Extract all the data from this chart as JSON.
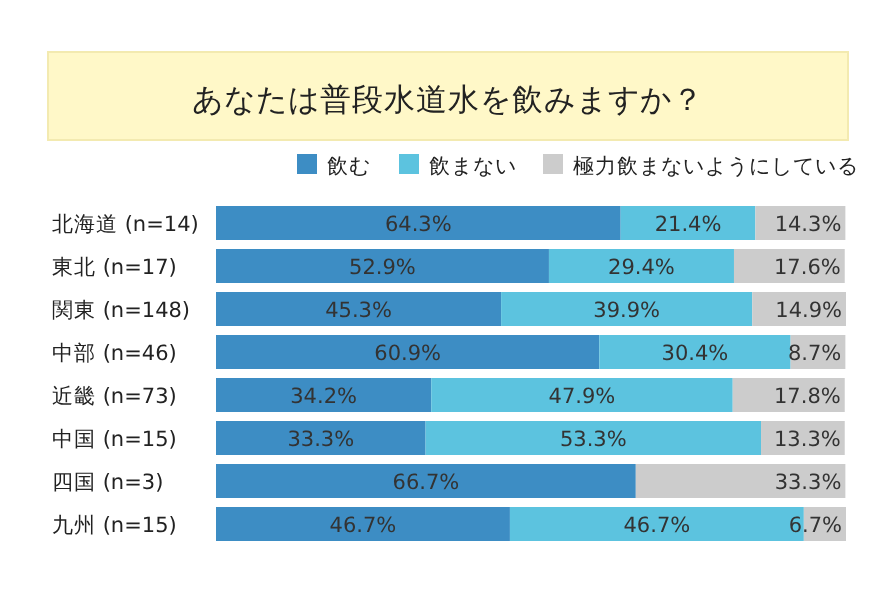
{
  "chart_data": {
    "type": "bar",
    "orientation": "horizontal",
    "stacked": true,
    "title": "あなたは普段水道水を飲みますか？",
    "legend": "top right",
    "categories": [
      "北海道 (n=14)",
      "東北 (n=17)",
      "関東 (n=148)",
      "中部 (n=46)",
      "近畿 (n=73)",
      "中国 (n=15)",
      "四国 (n=3)",
      "九州 (n=15)"
    ],
    "series": [
      {
        "name": "飲む",
        "color": "#3d8dc4",
        "values": [
          64.3,
          52.9,
          45.3,
          60.9,
          34.2,
          33.3,
          66.7,
          46.7
        ],
        "value_labels": [
          "64.3%",
          "52.9%",
          "45.3%",
          "60.9%",
          "34.2%",
          "33.3%",
          "66.7%",
          "46.7%"
        ]
      },
      {
        "name": "飲まない",
        "color": "#5cc3df",
        "values": [
          21.4,
          29.4,
          39.9,
          30.4,
          47.9,
          53.3,
          0,
          46.7
        ],
        "value_labels": [
          "21.4%",
          "29.4%",
          "39.9%",
          "30.4%",
          "47.9%",
          "53.3%",
          null,
          "46.7%"
        ]
      },
      {
        "name": "極力飲まないようにしている",
        "color": "#cccccc",
        "values": [
          14.3,
          17.6,
          14.9,
          8.7,
          17.8,
          13.3,
          33.3,
          6.7
        ],
        "value_labels": [
          "14.3%",
          "17.6%",
          "14.9%",
          "8.7%",
          "17.8%",
          "13.3%",
          "33.3%",
          "6.7%"
        ]
      }
    ]
  }
}
